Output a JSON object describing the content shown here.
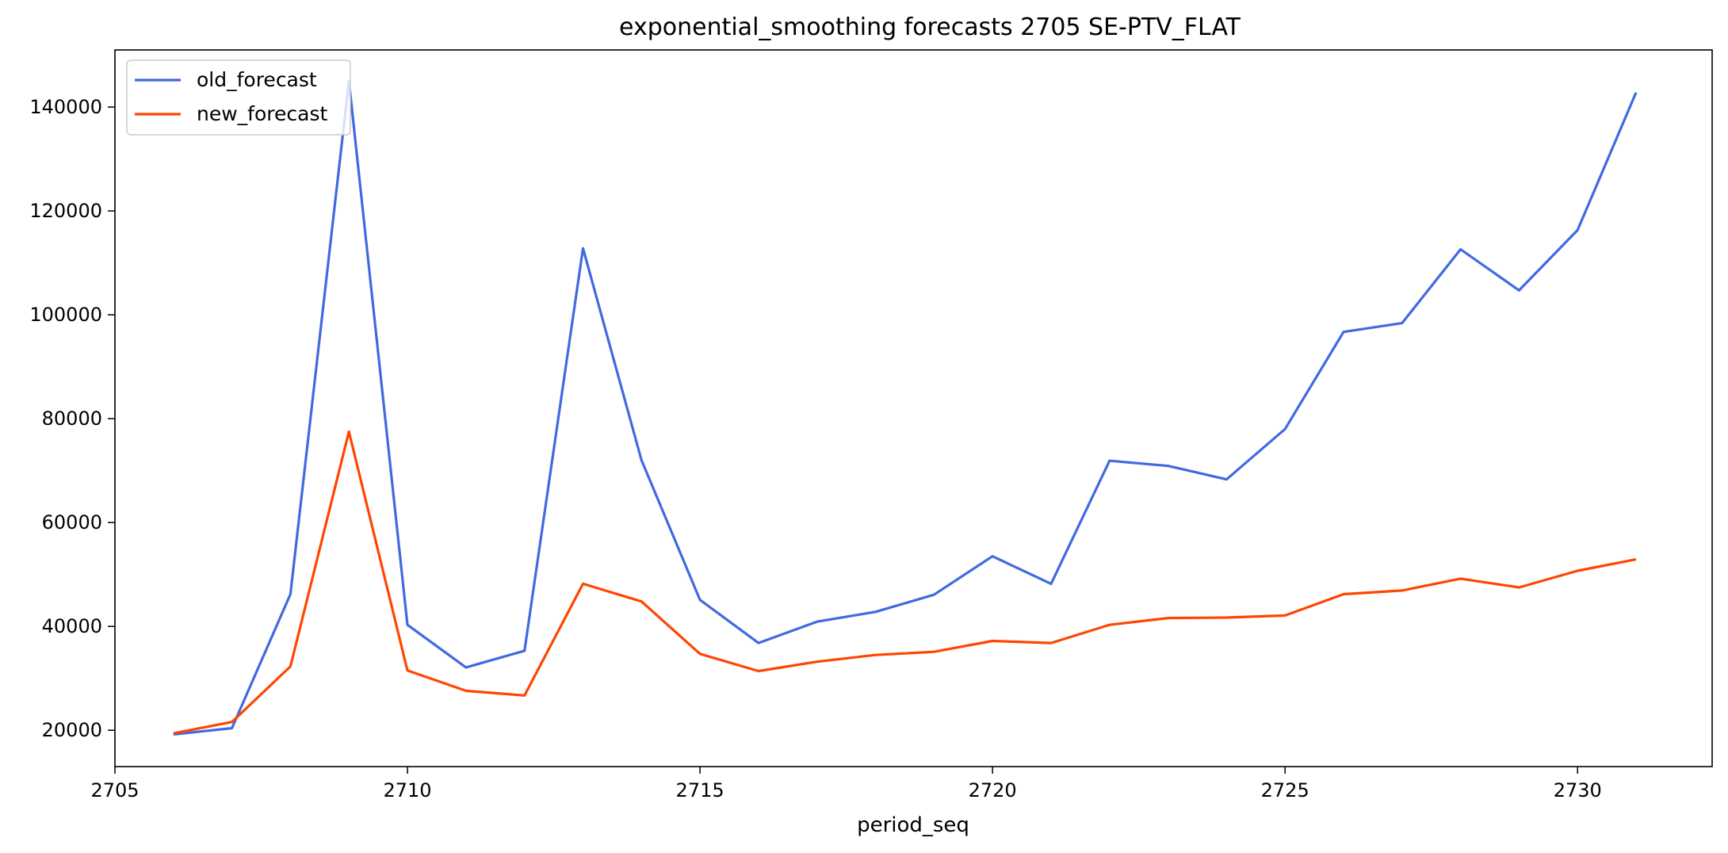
{
  "chart_data": {
    "type": "line",
    "title": "exponential_smoothing forecasts 2705 SE-PTV_FLAT",
    "xlabel": "period_seq",
    "ylabel": "",
    "xlim": [
      2705,
      2732.3
    ],
    "ylim": [
      13000,
      151000
    ],
    "x_ticks": [
      2705,
      2710,
      2715,
      2720,
      2725,
      2730
    ],
    "y_ticks": [
      20000,
      40000,
      60000,
      80000,
      100000,
      120000,
      140000
    ],
    "grid": false,
    "legend_position": "top-left",
    "x": [
      2706,
      2707,
      2708,
      2709,
      2710,
      2711,
      2712,
      2713,
      2714,
      2715,
      2716,
      2717,
      2718,
      2719,
      2720,
      2721,
      2722,
      2723,
      2724,
      2725,
      2726,
      2727,
      2728,
      2729,
      2730,
      2731
    ],
    "series": [
      {
        "name": "old_forecast",
        "color": "#4169e1",
        "values": [
          19200,
          20400,
          46200,
          145000,
          40300,
          32100,
          35300,
          112800,
          72000,
          45100,
          36800,
          40900,
          42800,
          46100,
          53500,
          48200,
          71900,
          70900,
          68300,
          78000,
          96700,
          98400,
          112600,
          104700,
          116300,
          142800
        ]
      },
      {
        "name": "new_forecast",
        "color": "#ff4500",
        "values": [
          19400,
          21600,
          32300,
          77500,
          31500,
          27600,
          26700,
          48200,
          44800,
          34700,
          31400,
          33200,
          34500,
          35100,
          37200,
          36800,
          40300,
          41600,
          41700,
          42100,
          46200,
          46900,
          49200,
          47500,
          50700,
          52900
        ]
      }
    ]
  }
}
